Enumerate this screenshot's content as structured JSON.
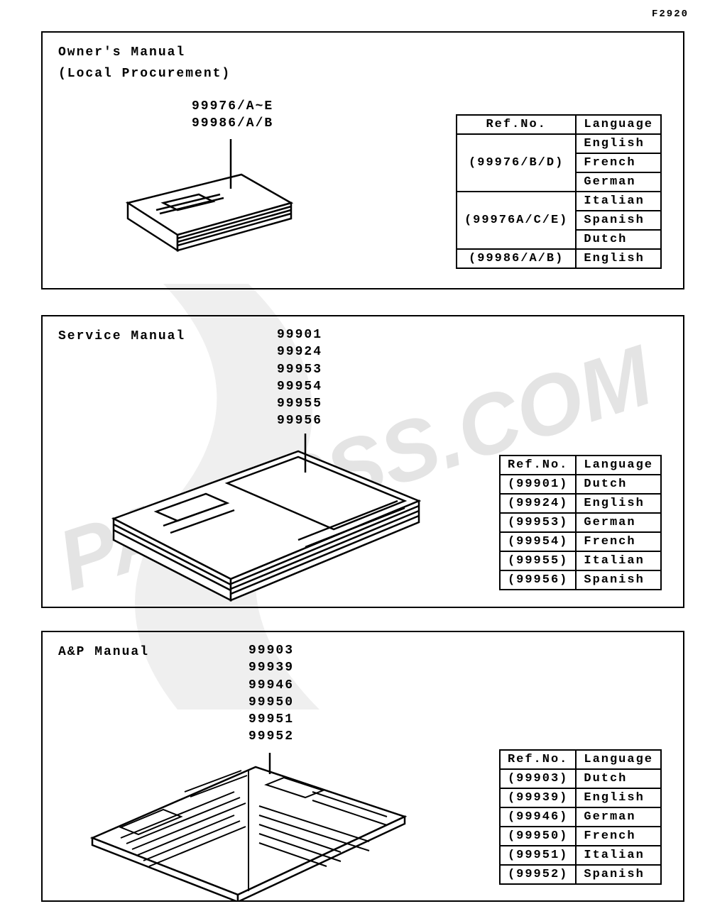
{
  "page_code": "F2920",
  "watermark_text": "PARTSSS.COM",
  "colors": {
    "stroke": "#000000",
    "background": "#ffffff",
    "watermark": "#e4e4e4"
  },
  "sections": [
    {
      "title": "Owner's Manual",
      "subtitle": "(Local Procurement)",
      "part_numbers": [
        "99976/A~E",
        "99986/A/B"
      ],
      "table": {
        "columns": [
          "Ref.No.",
          "Language"
        ],
        "rows": [
          {
            "ref": "(99976/B/D)",
            "langs": [
              "English",
              "French",
              "German"
            ]
          },
          {
            "ref": "(99976A/C/E)",
            "langs": [
              "Italian",
              "Spanish",
              "Dutch"
            ]
          },
          {
            "ref": "(99986/A/B)",
            "langs": [
              "English"
            ]
          }
        ]
      }
    },
    {
      "title": "Service Manual",
      "subtitle": "",
      "part_numbers": [
        "99901",
        "99924",
        "99953",
        "99954",
        "99955",
        "99956"
      ],
      "table": {
        "columns": [
          "Ref.No.",
          "Language"
        ],
        "rows": [
          {
            "ref": "(99901)",
            "langs": [
              "Dutch"
            ]
          },
          {
            "ref": "(99924)",
            "langs": [
              "English"
            ]
          },
          {
            "ref": "(99953)",
            "langs": [
              "German"
            ]
          },
          {
            "ref": "(99954)",
            "langs": [
              "French"
            ]
          },
          {
            "ref": "(99955)",
            "langs": [
              "Italian"
            ]
          },
          {
            "ref": "(99956)",
            "langs": [
              "Spanish"
            ]
          }
        ]
      }
    },
    {
      "title": "A&P Manual",
      "subtitle": "",
      "part_numbers": [
        "99903",
        "99939",
        "99946",
        "99950",
        "99951",
        "99952"
      ],
      "table": {
        "columns": [
          "Ref.No.",
          "Language"
        ],
        "rows": [
          {
            "ref": "(99903)",
            "langs": [
              "Dutch"
            ]
          },
          {
            "ref": "(99939)",
            "langs": [
              "English"
            ]
          },
          {
            "ref": "(99946)",
            "langs": [
              "German"
            ]
          },
          {
            "ref": "(99950)",
            "langs": [
              "French"
            ]
          },
          {
            "ref": "(99951)",
            "langs": [
              "Italian"
            ]
          },
          {
            "ref": "(99952)",
            "langs": [
              "Spanish"
            ]
          }
        ]
      }
    }
  ]
}
